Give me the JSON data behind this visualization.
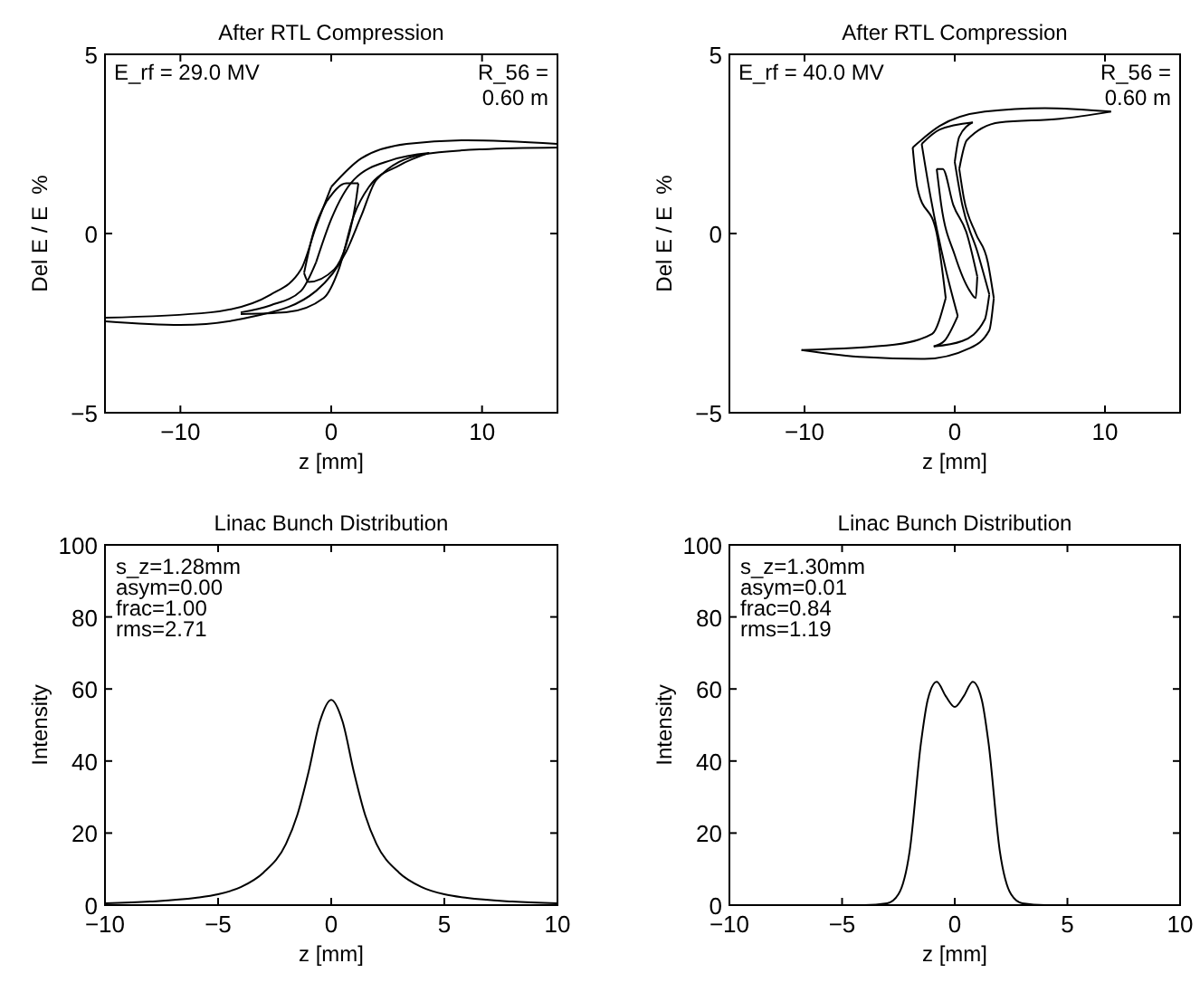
{
  "chart_data": [
    {
      "type": "line",
      "title": "After RTL Compression",
      "xlabel": "z [mm]",
      "ylabel": "Del E / E  %",
      "xlim": [
        -15,
        15
      ],
      "ylim": [
        -5,
        5
      ],
      "xticks": [
        -10,
        0,
        10
      ],
      "yticks": [
        -5,
        0,
        5
      ],
      "grid": false,
      "annotations": [
        "E_rf = 29.0 MV",
        "R_56 =\n0.60 m"
      ],
      "series": [
        {
          "color": "#000000",
          "x": [
            -15,
            -8,
            -4,
            -2,
            -1,
            0
          ],
          "values": [
            -2.35,
            -2.2,
            -1.7,
            -1,
            0.2,
            1.3
          ]
        },
        {
          "color": "#000000",
          "x": [
            0,
            2,
            5,
            9,
            15
          ],
          "values": [
            1.3,
            2.1,
            2.5,
            2.6,
            2.5
          ]
        },
        {
          "color": "#000000",
          "x": [
            -15,
            -10,
            -5,
            -1,
            1,
            2,
            3,
            6,
            10,
            15
          ],
          "values": [
            -2.45,
            -2.55,
            -2.3,
            -1.6,
            -0.5,
            0.5,
            1.5,
            2.2,
            2.35,
            2.4
          ]
        },
        {
          "color": "#000000",
          "x": [
            -6,
            -4,
            -2,
            -1
          ],
          "values": [
            -2.2,
            -2,
            -1.6,
            -0.8
          ]
        },
        {
          "color": "#000000",
          "x": [
            -1,
            0,
            1.5,
            4,
            6.5
          ],
          "values": [
            -0.8,
            0.4,
            1.5,
            2.05,
            2.25
          ]
        },
        {
          "color": "#000000",
          "x": [
            -6,
            -3,
            -0.5,
            0.5,
            1.5,
            2.5,
            4.5,
            6.5
          ],
          "values": [
            -2.25,
            -2.2,
            -1.8,
            -1,
            0.5,
            1.3,
            1.9,
            2.25
          ]
        },
        {
          "color": "#000000",
          "x": [
            -1.8,
            -1.2,
            -0.3
          ],
          "values": [
            -1.1,
            0,
            0.9
          ]
        },
        {
          "color": "#000000",
          "x": [
            -0.3,
            1,
            1.8
          ],
          "values": [
            0.9,
            1.4,
            1.4
          ]
        },
        {
          "color": "#000000",
          "x": [
            -1.8,
            -1.5,
            0.2,
            1,
            1.6,
            1.8
          ],
          "values": [
            -1.1,
            -1.35,
            -1,
            -0.3,
            0.8,
            1.4
          ]
        }
      ]
    },
    {
      "type": "line",
      "title": "After RTL Compression",
      "xlabel": "z [mm]",
      "ylabel": "Del E / E  %",
      "xlim": [
        -15,
        15
      ],
      "ylim": [
        -5,
        5
      ],
      "xticks": [
        -10,
        0,
        10
      ],
      "yticks": [
        -5,
        0,
        5
      ],
      "grid": false,
      "annotations": [
        "E_rf = 40.0 MV",
        "R_56 =\n0.60 m"
      ],
      "series": [
        {
          "color": "#000000",
          "x": [
            -2.8,
            -1,
            2,
            6,
            10.4
          ],
          "values": [
            2.4,
            3,
            3.4,
            3.5,
            3.4
          ]
        },
        {
          "color": "#000000",
          "x": [
            -2.8,
            -2.5,
            -1.2,
            -0.6
          ],
          "values": [
            2.4,
            1.3,
            0,
            -1.8
          ]
        },
        {
          "color": "#000000",
          "x": [
            -10.2,
            -4,
            -1.5,
            -0.6
          ],
          "values": [
            -3.25,
            -3.1,
            -2.8,
            -1.8
          ]
        },
        {
          "color": "#000000",
          "x": [
            -10.2,
            -6,
            -2,
            1,
            2.3,
            2.6
          ],
          "values": [
            -3.25,
            -3.45,
            -3.5,
            -3.2,
            -2.7,
            -1.8
          ]
        },
        {
          "color": "#000000",
          "x": [
            0.3,
            0.6,
            1.4,
            2.2,
            2.6
          ],
          "values": [
            1.8,
            1,
            0,
            -0.8,
            -1.8
          ]
        },
        {
          "color": "#000000",
          "x": [
            0.3,
            0.8,
            3,
            7,
            10.4
          ],
          "values": [
            1.8,
            2.6,
            3.1,
            3.2,
            3.4
          ]
        },
        {
          "color": "#000000",
          "x": [
            -2.2,
            -1,
            1.2
          ],
          "values": [
            2.5,
            2.9,
            3.1
          ]
        },
        {
          "color": "#000000",
          "x": [
            -2.2,
            -1.6,
            -0.6,
            0.2
          ],
          "values": [
            2.5,
            1,
            -1,
            -2.3
          ]
        },
        {
          "color": "#000000",
          "x": [
            -1.4,
            -0.7,
            0.2
          ],
          "values": [
            -3.15,
            -3,
            -2.3
          ]
        },
        {
          "color": "#000000",
          "x": [
            -1.4,
            0.5,
            2,
            2.3
          ],
          "values": [
            -3.15,
            -3,
            -2.4,
            -1.7
          ]
        },
        {
          "color": "#000000",
          "x": [
            0,
            0.5,
            1.5,
            2.3
          ],
          "values": [
            2,
            0.8,
            -0.5,
            -1.7
          ]
        },
        {
          "color": "#000000",
          "x": [
            0,
            0.3,
            1.2
          ],
          "values": [
            2,
            2.7,
            3.1
          ]
        },
        {
          "color": "#000000",
          "x": [
            -1.2,
            -0.9,
            0,
            1,
            1.4,
            1.5
          ],
          "values": [
            1.8,
            0.8,
            -0.6,
            -1.6,
            -1.8,
            -1.2
          ]
        },
        {
          "color": "#000000",
          "x": [
            -1.2,
            -0.8,
            -0.1,
            0.8,
            1.5
          ],
          "values": [
            1.8,
            1.8,
            0.8,
            0,
            -1.2
          ]
        }
      ]
    },
    {
      "type": "line",
      "title": "Linac Bunch Distribution",
      "xlabel": "z [mm]",
      "ylabel": "Intensity",
      "xlim": [
        -10,
        10
      ],
      "ylim": [
        0,
        100
      ],
      "xticks": [
        -10,
        -5,
        0,
        5,
        10
      ],
      "yticks": [
        0,
        20,
        40,
        60,
        80,
        100
      ],
      "grid": false,
      "annotations": [
        "s_z=1.28mm",
        "asym=0.00",
        "frac=1.00",
        "rms=2.71"
      ],
      "series": [
        {
          "color": "#000000",
          "x": [
            -10,
            -8,
            -6,
            -5,
            -4,
            -3,
            -2,
            -1.5,
            -1,
            -0.5,
            0,
            0.5,
            1,
            1.5,
            2,
            3,
            4,
            5,
            6,
            8,
            10
          ],
          "values": [
            0.5,
            1,
            2,
            3,
            5,
            9,
            17,
            25,
            37,
            51,
            57,
            51,
            37,
            25,
            17,
            9,
            5,
            3,
            2,
            1,
            0.5
          ]
        }
      ]
    },
    {
      "type": "line",
      "title": "Linac Bunch Distribution",
      "xlabel": "z [mm]",
      "ylabel": "Intensity",
      "xlim": [
        -10,
        10
      ],
      "ylim": [
        0,
        100
      ],
      "xticks": [
        -10,
        -5,
        0,
        5,
        10
      ],
      "yticks": [
        0,
        20,
        40,
        60,
        80,
        100
      ],
      "grid": false,
      "annotations": [
        "s_z=1.30mm",
        "asym=0.01",
        "frac=0.84",
        "rms=1.19"
      ],
      "series": [
        {
          "color": "#000000",
          "x": [
            -10,
            -4,
            -3,
            -2.5,
            -2,
            -1.5,
            -1.2,
            -0.8,
            -0.4,
            0,
            0.4,
            0.8,
            1.2,
            1.5,
            2,
            2.5,
            3,
            4,
            10
          ],
          "values": [
            0,
            0,
            0.5,
            3,
            15,
            45,
            57,
            62,
            58,
            55,
            58,
            62,
            57,
            45,
            15,
            3,
            0.5,
            0,
            0
          ]
        }
      ]
    }
  ]
}
